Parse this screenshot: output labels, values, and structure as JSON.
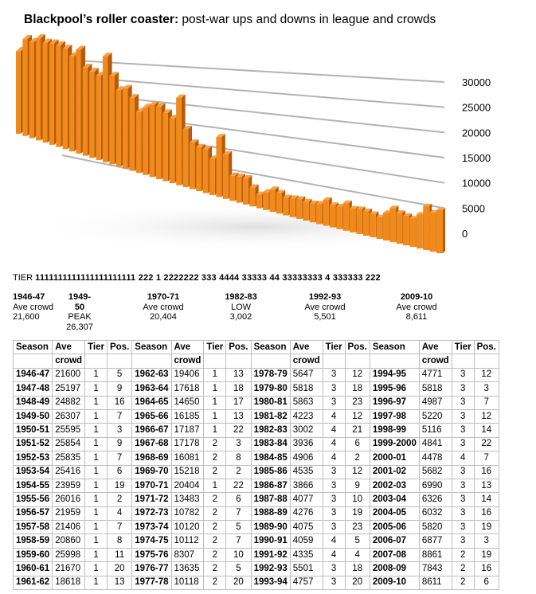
{
  "title_bold": "Blackpool’s roller coaster:",
  "title_rest": " post-war ups and downs in league and crowds",
  "chart_data": {
    "type": "bar",
    "y_ticks": [
      "30000",
      "25000",
      "20000",
      "15000",
      "10000",
      "5000",
      "0"
    ],
    "ylim": [
      0,
      30000
    ],
    "bar_color": "#f08a1c",
    "grid": true,
    "x": [
      "1946-47",
      "1947-48",
      "1948-49",
      "1949-50",
      "1950-51",
      "1951-52",
      "1952-53",
      "1953-54",
      "1954-55",
      "1955-56",
      "1956-57",
      "1957-58",
      "1958-59",
      "1959-60",
      "1960-61",
      "1961-62",
      "1962-63",
      "1963-64",
      "1964-65",
      "1965-66",
      "1966-67",
      "1967-68",
      "1968-69",
      "1969-70",
      "1970-71",
      "1971-72",
      "1972-73",
      "1973-74",
      "1974-75",
      "1975-76",
      "1976-77",
      "1977-78",
      "1978-79",
      "1979-80",
      "1980-81",
      "1981-82",
      "1982-83",
      "1983-84",
      "1984-85",
      "1985-86",
      "1986-87",
      "1987-88",
      "1988-89",
      "1989-90",
      "1990-91",
      "1991-92",
      "1992-93",
      "1993-94",
      "1994-95",
      "1995-96",
      "1996-97",
      "1997-98",
      "1998-99",
      "1999-2000",
      "2000-01",
      "2001-02",
      "2002-03",
      "2003-04",
      "2004-05",
      "2005-06",
      "2006-07",
      "2007-08",
      "2008-09",
      "2009-10"
    ],
    "values": [
      21600,
      25197,
      24882,
      26307,
      25595,
      25854,
      25835,
      25416,
      23959,
      26016,
      21959,
      21406,
      20860,
      25998,
      21670,
      18618,
      19406,
      17618,
      14650,
      16185,
      17187,
      17178,
      16081,
      15218,
      20404,
      13483,
      10782,
      10120,
      10112,
      8307,
      13635,
      10118,
      5647,
      5818,
      5863,
      4223,
      3002,
      3936,
      4906,
      4535,
      3866,
      4077,
      4276,
      4075,
      4059,
      4335,
      5501,
      4757,
      4771,
      5818,
      4987,
      5220,
      5116,
      4841,
      4478,
      5682,
      6990,
      6326,
      6032,
      5820,
      6877,
      8861,
      7843,
      8611
    ]
  },
  "tier_row": {
    "label": "TIER",
    "tiers": "1111111111111111111111    222    1    2222222   333   4444   33333     44    33333333      4      333333        222"
  },
  "annotations": [
    {
      "season": "1946-47",
      "label": "Ave crowd",
      "value": "21,600"
    },
    {
      "season": "1949-50",
      "label": "PEAK",
      "value": "26,307"
    },
    {
      "season": "1970-71",
      "label": "Ave crowd",
      "value": "20,404"
    },
    {
      "season": "1982-83",
      "label": "LOW",
      "value": "3,002"
    },
    {
      "season": "1992-93",
      "label": "Ave crowd",
      "value": "5,501"
    },
    {
      "season": "2009-10",
      "label": "Ave crowd",
      "value": "8,611"
    }
  ],
  "table": {
    "headers": [
      "Season",
      "Ave",
      "Tier",
      "Pos."
    ],
    "headers2": [
      "",
      "crowd",
      "",
      ""
    ],
    "columns": [
      [
        [
          "1946-47",
          "21600",
          "1",
          "5"
        ],
        [
          "1947-48",
          "25197",
          "1",
          "9"
        ],
        [
          "1948-49",
          "24882",
          "1",
          "16"
        ],
        [
          "1949-50",
          "26307",
          "1",
          "7"
        ],
        [
          "1950-51",
          "25595",
          "1",
          "3"
        ],
        [
          "1951-52",
          "25854",
          "1",
          "9"
        ],
        [
          "1952-53",
          "25835",
          "1",
          "7"
        ],
        [
          "1953-54",
          "25416",
          "1",
          "6"
        ],
        [
          "1954-55",
          "23959",
          "1",
          "19"
        ],
        [
          "1955-56",
          "26016",
          "1",
          "2"
        ],
        [
          "1956-57",
          "21959",
          "1",
          "4"
        ],
        [
          "1957-58",
          "21406",
          "1",
          "7"
        ],
        [
          "1958-59",
          "20860",
          "1",
          "8"
        ],
        [
          "1959-60",
          "25998",
          "1",
          "11"
        ],
        [
          "1960-61",
          "21670",
          "1",
          "20"
        ],
        [
          "1961-62",
          "18618",
          "1",
          "13"
        ]
      ],
      [
        [
          "1962-63",
          "19406",
          "1",
          "13"
        ],
        [
          "1963-64",
          "17618",
          "1",
          "18"
        ],
        [
          "1964-65",
          "14650",
          "1",
          "17"
        ],
        [
          "1965-66",
          "16185",
          "1",
          "13"
        ],
        [
          "1966-67",
          "17187",
          "1",
          "22"
        ],
        [
          "1967-68",
          "17178",
          "2",
          "3"
        ],
        [
          "1968-69",
          "16081",
          "2",
          "8"
        ],
        [
          "1969-70",
          "15218",
          "2",
          "2"
        ],
        [
          "1970-71",
          "20404",
          "1",
          "22"
        ],
        [
          "1971-72",
          "13483",
          "2",
          "6"
        ],
        [
          "1972-73",
          "10782",
          "2",
          "7"
        ],
        [
          "1973-74",
          "10120",
          "2",
          "5"
        ],
        [
          "1974-75",
          "10112",
          "2",
          "7"
        ],
        [
          "1975-76",
          "8307",
          "2",
          "10"
        ],
        [
          "1976-77",
          "13635",
          "2",
          "5"
        ],
        [
          "1977-78",
          "10118",
          "2",
          "20"
        ]
      ],
      [
        [
          "1978-79",
          "5647",
          "3",
          "12"
        ],
        [
          "1979-80",
          "5818",
          "3",
          "18"
        ],
        [
          "1980-81",
          "5863",
          "3",
          "23"
        ],
        [
          "1981-82",
          "4223",
          "4",
          "12"
        ],
        [
          "1982-83",
          "3002",
          "4",
          "21"
        ],
        [
          "1983-84",
          "3936",
          "4",
          "6"
        ],
        [
          "1984-85",
          "4906",
          "4",
          "2"
        ],
        [
          "1985-86",
          "4535",
          "3",
          "12"
        ],
        [
          "1986-87",
          "3866",
          "3",
          "9"
        ],
        [
          "1987-88",
          "4077",
          "3",
          "10"
        ],
        [
          "1988-89",
          "4276",
          "3",
          "19"
        ],
        [
          "1989-90",
          "4075",
          "3",
          "23"
        ],
        [
          "1990-91",
          "4059",
          "4",
          "5"
        ],
        [
          "1991-92",
          "4335",
          "4",
          "4"
        ],
        [
          "1992-93",
          "5501",
          "3",
          "18"
        ],
        [
          "1993-94",
          "4757",
          "3",
          "20"
        ]
      ],
      [
        [
          "1994-95",
          "4771",
          "3",
          "12"
        ],
        [
          "1995-96",
          "5818",
          "3",
          "3"
        ],
        [
          "1996-97",
          "4987",
          "3",
          "7"
        ],
        [
          "1997-98",
          "5220",
          "3",
          "12"
        ],
        [
          "1998-99",
          "5116",
          "3",
          "14"
        ],
        [
          "1999-2000",
          "4841",
          "3",
          "22"
        ],
        [
          "2000-01",
          "4478",
          "4",
          "7"
        ],
        [
          "2001-02",
          "5682",
          "3",
          "16"
        ],
        [
          "2002-03",
          "6990",
          "3",
          "13"
        ],
        [
          "2003-04",
          "6326",
          "3",
          "14"
        ],
        [
          "2004-05",
          "6032",
          "3",
          "16"
        ],
        [
          "2005-06",
          "5820",
          "3",
          "19"
        ],
        [
          "2006-07",
          "6877",
          "3",
          "3"
        ],
        [
          "2007-08",
          "8861",
          "2",
          "19"
        ],
        [
          "2008-09",
          "7843",
          "2",
          "16"
        ],
        [
          "2009-10",
          "8611",
          "2",
          "6"
        ]
      ]
    ]
  }
}
